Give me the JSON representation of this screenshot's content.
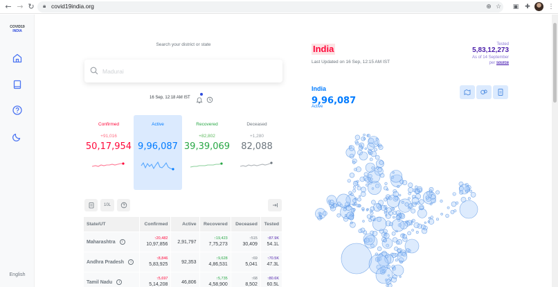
{
  "browser": {
    "url": "covid19india.org",
    "icons": [
      "back-icon",
      "forward-icon",
      "reload-icon",
      "lock-icon",
      "lens-icon",
      "star-icon",
      "extension-icon",
      "puzzle-icon",
      "avatar",
      "menu-icon"
    ]
  },
  "sidebar": {
    "brand_line1": "COVID19",
    "brand_line2": "INDIA",
    "items": [
      "home-icon",
      "book-icon",
      "help-icon",
      "moon-icon"
    ],
    "language": "English"
  },
  "search": {
    "label": "Search your district or state",
    "placeholder": "Madurai"
  },
  "timestamp": "16 Sep, 12:18 AM IST",
  "stats": [
    {
      "label": "Confirmed",
      "delta": "+91,016",
      "value": "50,17,954",
      "color": "#ff073a"
    },
    {
      "label": "Active",
      "delta": "",
      "value": "9,96,087",
      "color": "#007bff"
    },
    {
      "label": "Recovered",
      "delta": "+82,802",
      "value": "39,39,069",
      "color": "#28a745"
    },
    {
      "label": "Deceased",
      "delta": "+1,280",
      "value": "82,088",
      "color": "#6c757d"
    }
  ],
  "table_controls": {
    "abbrev": "10L"
  },
  "table": {
    "headers": [
      "State/UT",
      "Confirmed",
      "Active",
      "Recovered",
      "Deceased",
      "Tested"
    ],
    "rows": [
      {
        "state": "Maharashtra",
        "confirmed_delta": "↑20,482",
        "confirmed": "10,97,856",
        "active": "2,91,797",
        "recovered_delta": "↑19,423",
        "recovered": "7,75,273",
        "deceased_delta": "↑515",
        "deceased": "30,409",
        "tested_delta": "↑87.9K",
        "tested": "54.1L"
      },
      {
        "state": "Andhra Pradesh",
        "confirmed_delta": "↑8,846",
        "confirmed": "5,83,925",
        "active": "92,353",
        "recovered_delta": "↑9,628",
        "recovered": "4,86,531",
        "deceased_delta": "↑69",
        "deceased": "5,041",
        "tested_delta": "↑70.5K",
        "tested": "47.3L"
      },
      {
        "state": "Tamil Nadu",
        "confirmed_delta": "↑5,697",
        "confirmed": "5,14,208",
        "active": "46,806",
        "recovered_delta": "↑5,735",
        "recovered": "4,58,900",
        "deceased_delta": "↑68",
        "deceased": "8,502",
        "tested_delta": "↑80.6K",
        "tested": "60.5L"
      }
    ]
  },
  "summary": {
    "title": "India",
    "last_updated": "Last Updated on 16 Sep, 12:15 AM IST",
    "tested_label": "Tested",
    "tested_value": "5,83,12,273",
    "tested_asof": "As of 14 September",
    "tested_per": "per",
    "tested_source": "source"
  },
  "map": {
    "region": "India",
    "value": "9,96,087",
    "metric": "Active",
    "accent": "#007bff"
  }
}
